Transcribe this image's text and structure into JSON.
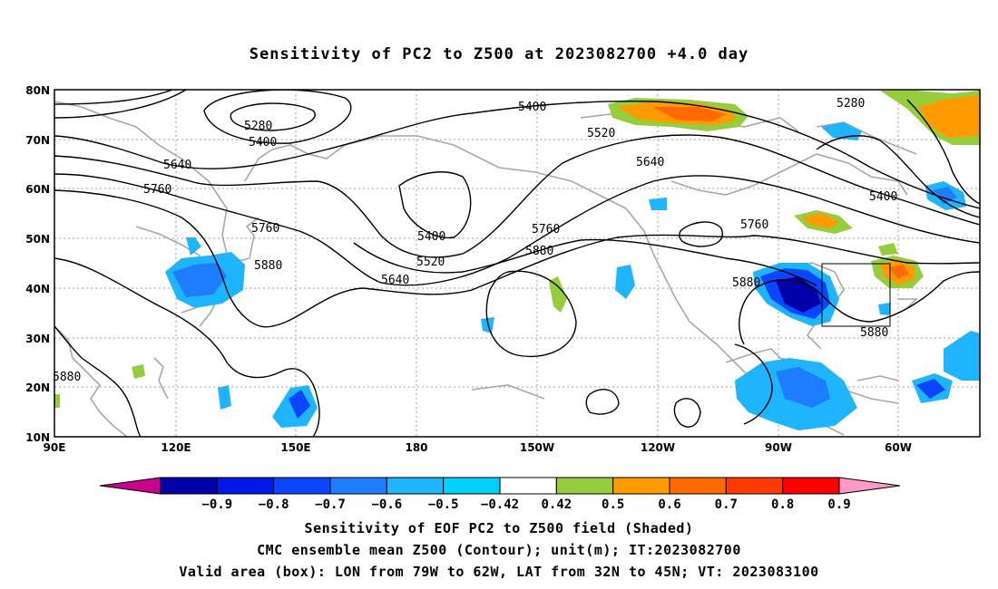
{
  "title": "Sensitivity of PC2 to Z500 at 2023082700 +4.0 day",
  "lat_labels": [
    "80N",
    "70N",
    "60N",
    "50N",
    "40N",
    "30N",
    "20N",
    "10N"
  ],
  "lon_labels": [
    "90E",
    "120E",
    "150E",
    "180",
    "150W",
    "120W",
    "90W",
    "60W"
  ],
  "contour_labels": [
    "5280",
    "5400",
    "5640",
    "5760",
    "5760",
    "5880",
    "5880",
    "5400",
    "5520",
    "5640",
    "5400",
    "5520",
    "5640",
    "5760",
    "5880",
    "5280",
    "5400",
    "5760",
    "5880",
    "5880"
  ],
  "colorbar": {
    "labels": [
      "-0.9",
      "-0.8",
      "-0.7",
      "-0.6",
      "-0.5",
      "-0.42",
      "0.42",
      "0.5",
      "0.6",
      "0.7",
      "0.8",
      "0.9"
    ],
    "colors": [
      "#c8008c",
      "#0000a8",
      "#0018e8",
      "#0a46ff",
      "#1e7cff",
      "#1eb4ff",
      "#00d2ff",
      "#ffffff",
      "#96cd3c",
      "#ff9a00",
      "#ff6a00",
      "#ff3a00",
      "#ff0000",
      "#ff9ac8"
    ]
  },
  "valid_box": {
    "lon_w": -79,
    "lon_e": -62,
    "lat_s": 32,
    "lat_n": 45
  },
  "captions": [
    "Sensitivity of EOF PC2 to Z500 field (Shaded)",
    "CMC ensemble mean Z500 (Contour); unit(m); IT:2023082700",
    "Valid area (box): LON from 79W to 62W, LAT from 32N to 45N; VT: 2023083100"
  ]
}
